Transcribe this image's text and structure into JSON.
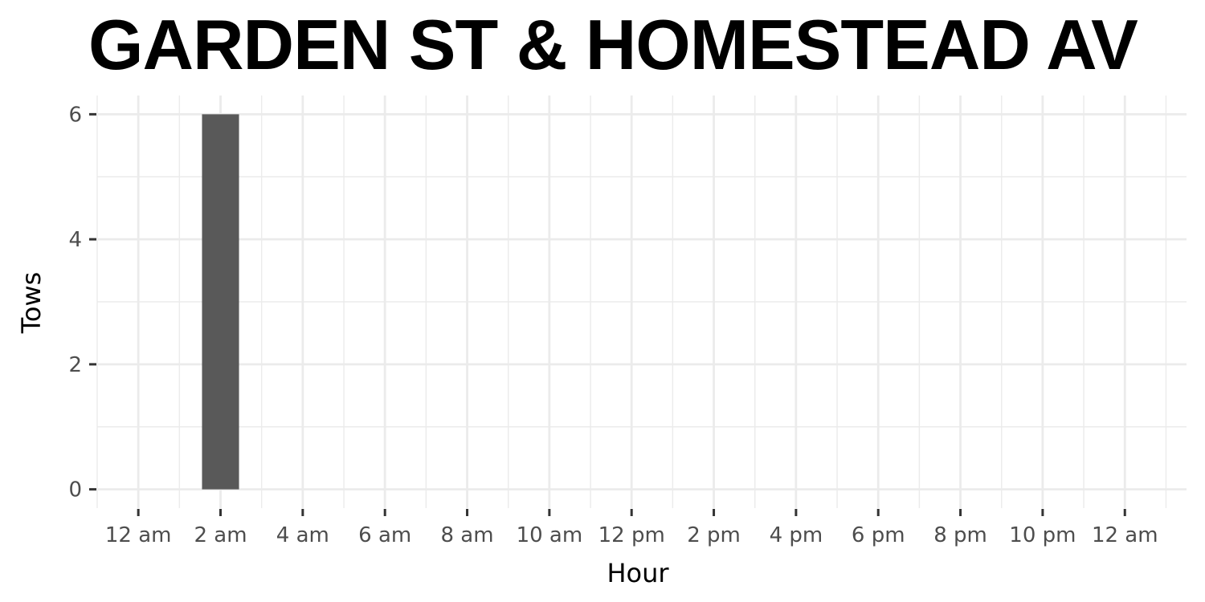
{
  "chart_data": {
    "type": "bar",
    "title": "GARDEN ST & HOMESTEAD AV",
    "xlabel": "Hour",
    "ylabel": "Tows",
    "x_ticks": [
      "12 am",
      "2 am",
      "4 am",
      "6 am",
      "8 am",
      "10 am",
      "12 pm",
      "2 pm",
      "4 pm",
      "6 pm",
      "8 pm",
      "10 pm",
      "12 am"
    ],
    "x_tick_hours": [
      0,
      2,
      4,
      6,
      8,
      10,
      12,
      14,
      16,
      18,
      20,
      22,
      24
    ],
    "xlim": [
      -1,
      25.5
    ],
    "y_ticks": [
      "0",
      "2",
      "4",
      "6"
    ],
    "y_tick_values": [
      0,
      2,
      4,
      6
    ],
    "ylim": [
      -0.3,
      6.3
    ],
    "bars": [
      {
        "hour": 2,
        "value": 6
      }
    ],
    "bar_color": "#595959",
    "grid": true,
    "legend": "none"
  }
}
